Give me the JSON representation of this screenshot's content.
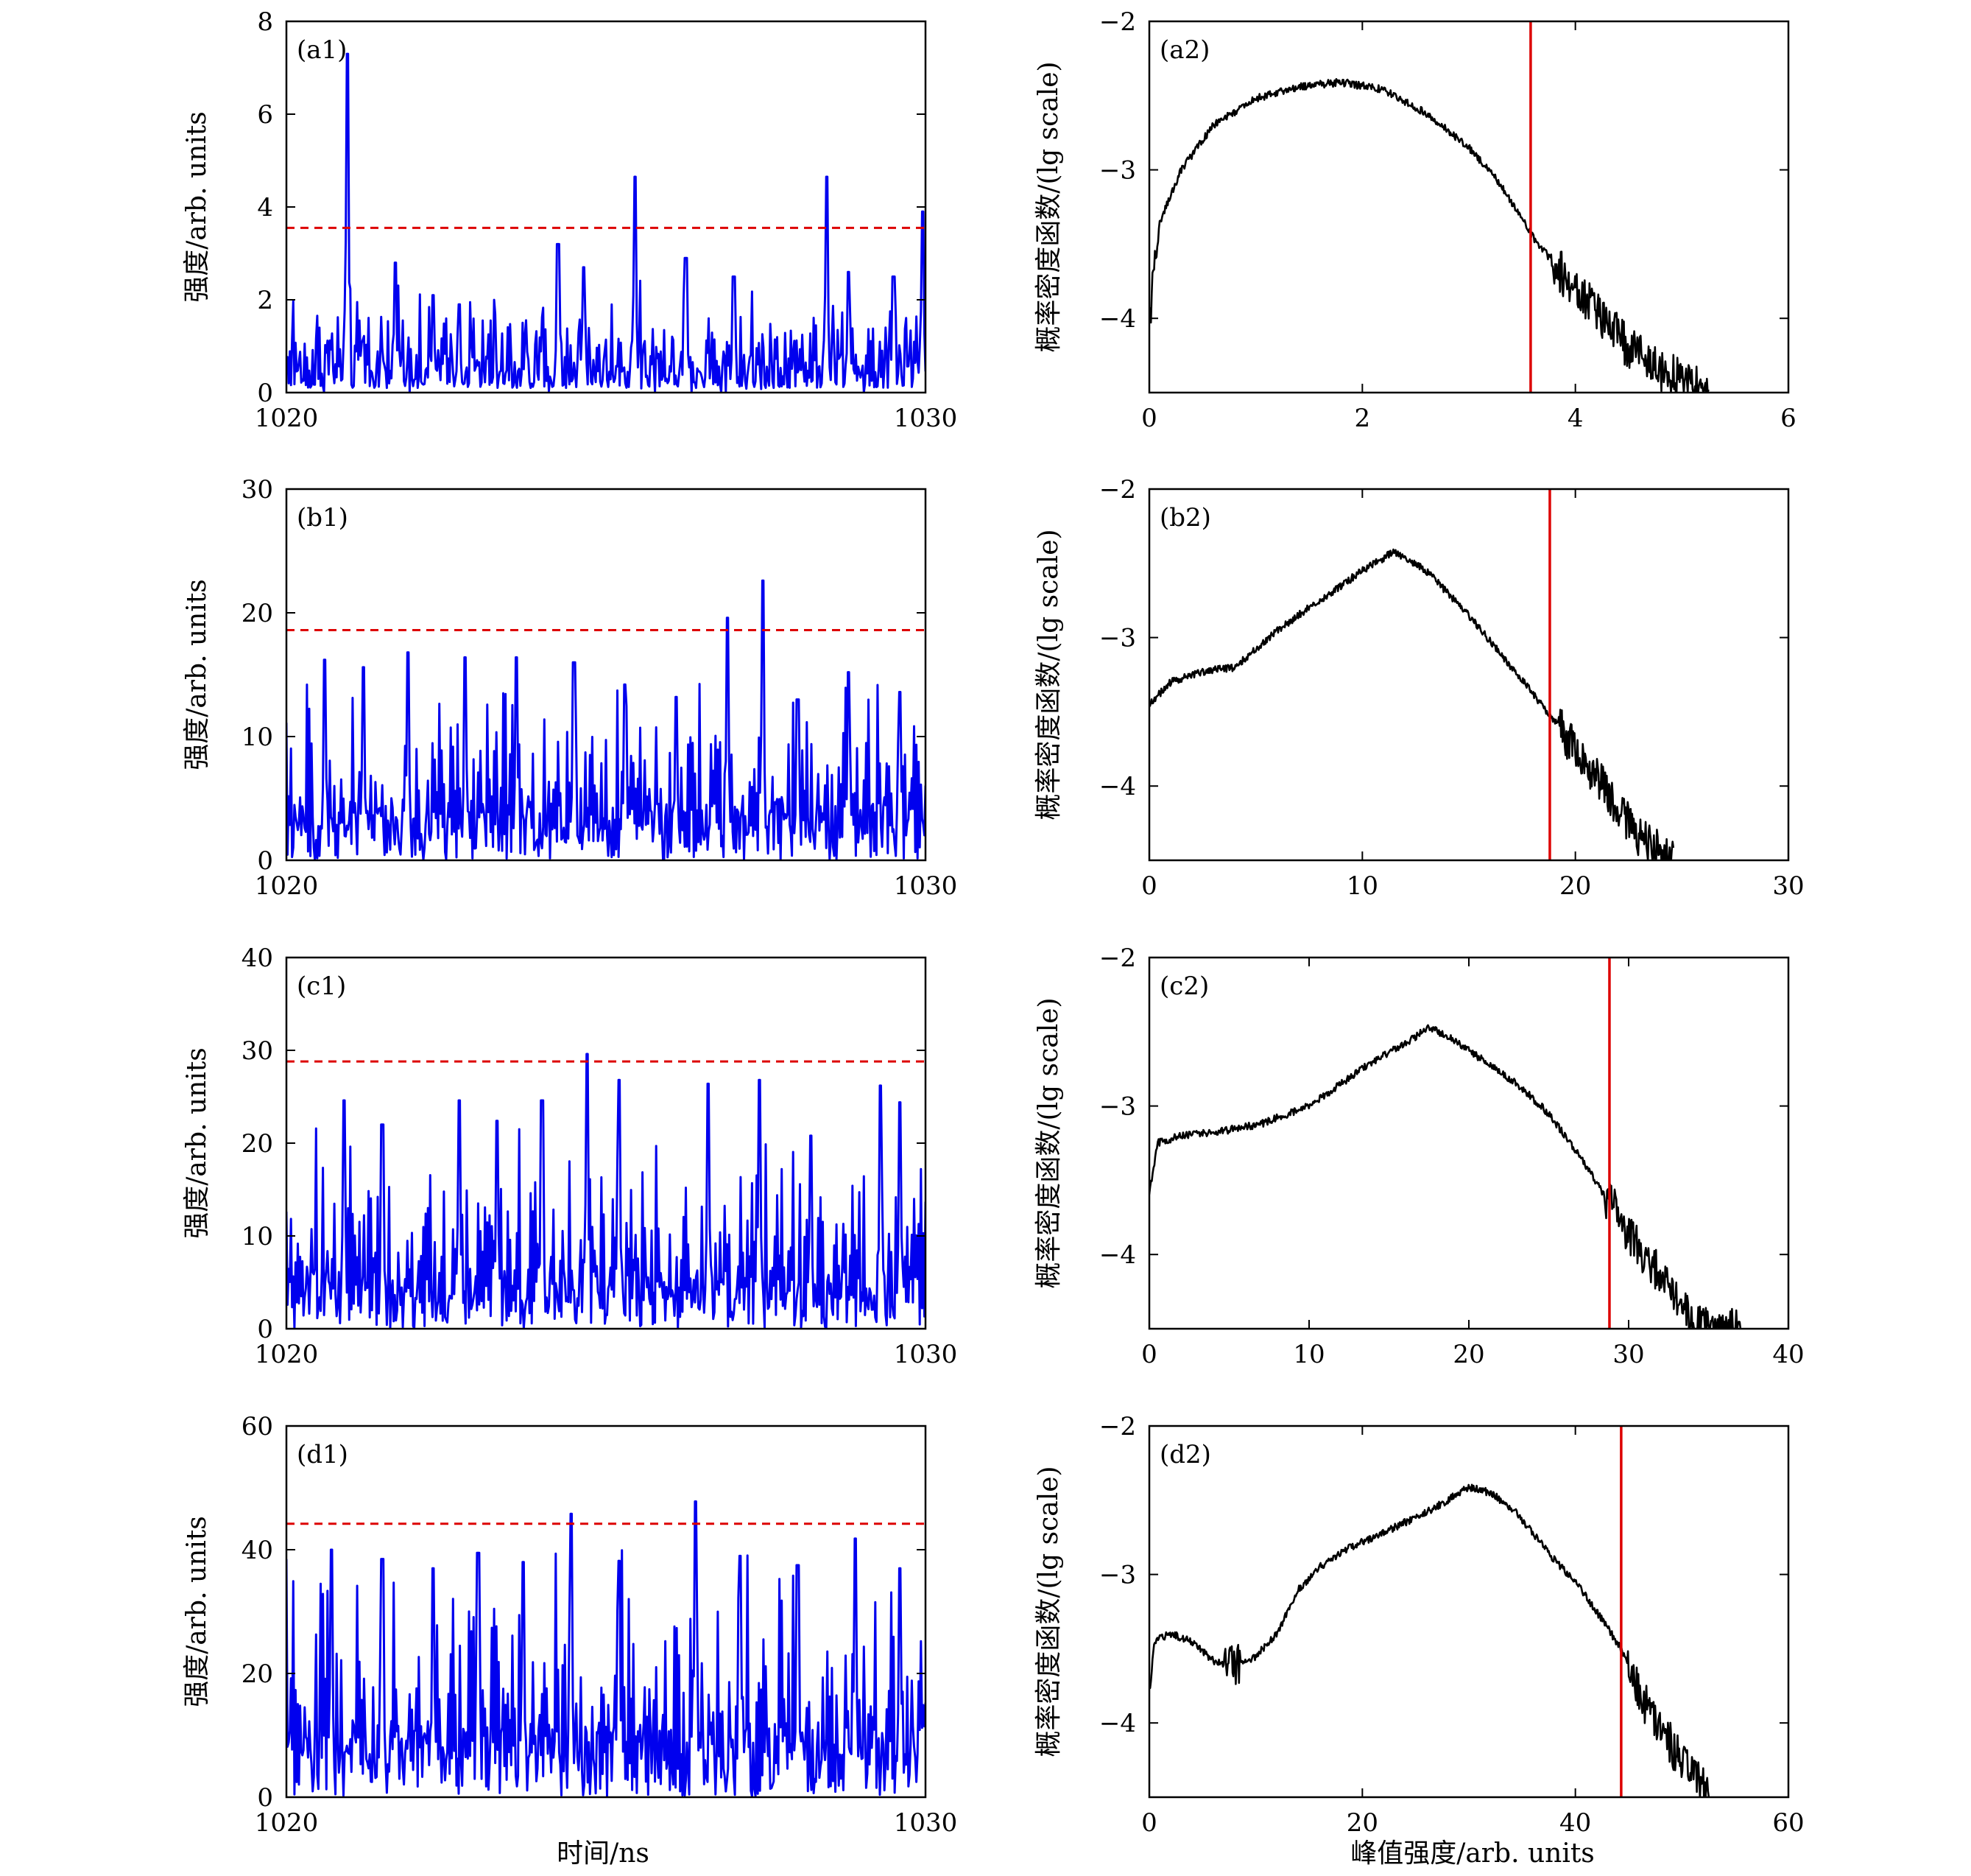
{
  "figure": {
    "xlabel_left": "时间/ns",
    "xlabel_right": "峰值强度/arb. units"
  },
  "chart_data": [
    {
      "id": "a1",
      "type": "line",
      "panel_label": "(a1)",
      "xlabel": "",
      "ylabel": "强度/arb. units",
      "xlim": [
        1020,
        1030
      ],
      "ylim": [
        0,
        8
      ],
      "xticks": [
        1020,
        1030
      ],
      "yticks": [
        0,
        2,
        4,
        6,
        8
      ],
      "line_color": "#0000ee",
      "threshold": {
        "value": 3.55,
        "style": "dashed",
        "color": "#dd0000"
      },
      "peaks": [
        {
          "x": 1020.95,
          "y": 7.3
        },
        {
          "x": 1021.7,
          "y": 2.8
        },
        {
          "x": 1022.3,
          "y": 2.1
        },
        {
          "x": 1022.7,
          "y": 1.9
        },
        {
          "x": 1024.25,
          "y": 3.2
        },
        {
          "x": 1024.65,
          "y": 2.7
        },
        {
          "x": 1025.45,
          "y": 4.65
        },
        {
          "x": 1026.25,
          "y": 2.9
        },
        {
          "x": 1027.0,
          "y": 2.5
        },
        {
          "x": 1028.45,
          "y": 4.65
        },
        {
          "x": 1028.8,
          "y": 2.6
        },
        {
          "x": 1029.5,
          "y": 2.5
        },
        {
          "x": 1029.95,
          "y": 3.9
        }
      ]
    },
    {
      "id": "a2",
      "type": "line",
      "panel_label": "(a2)",
      "xlabel": "",
      "ylabel": "概率密度函数/(lg scale)",
      "xlim": [
        0,
        6
      ],
      "ylim": [
        -4.5,
        -2
      ],
      "xticks": [
        0,
        2,
        4,
        6
      ],
      "yticks": [
        -2,
        -3,
        -4
      ],
      "line_color": "#000000",
      "threshold": {
        "value": 3.58,
        "style": "solid",
        "color": "#dd0000"
      },
      "x": [
        0.0,
        0.1,
        0.3,
        0.6,
        1.0,
        1.4,
        1.8,
        2.2,
        2.6,
        3.0,
        3.3,
        3.6,
        3.9,
        4.2,
        4.5,
        4.8,
        5.1,
        5.25
      ],
      "y": [
        -4.0,
        -3.35,
        -3.0,
        -2.7,
        -2.52,
        -2.44,
        -2.41,
        -2.46,
        -2.62,
        -2.85,
        -3.1,
        -3.45,
        -3.72,
        -3.95,
        -4.2,
        -4.35,
        -4.45,
        -4.5
      ]
    },
    {
      "id": "b1",
      "type": "line",
      "panel_label": "(b1)",
      "xlabel": "",
      "ylabel": "强度/arb. units",
      "xlim": [
        1020,
        1030
      ],
      "ylim": [
        0,
        30
      ],
      "xticks": [
        1020,
        1030
      ],
      "yticks": [
        0,
        10,
        20,
        30
      ],
      "line_color": "#0000ee",
      "threshold": {
        "value": 18.6,
        "style": "dashed",
        "color": "#dd0000"
      },
      "peaks": [
        {
          "x": 1020.6,
          "y": 16.2
        },
        {
          "x": 1021.2,
          "y": 15.6
        },
        {
          "x": 1021.9,
          "y": 16.8
        },
        {
          "x": 1022.8,
          "y": 16.4
        },
        {
          "x": 1023.6,
          "y": 16.4
        },
        {
          "x": 1024.5,
          "y": 16.0
        },
        {
          "x": 1025.3,
          "y": 14.2
        },
        {
          "x": 1026.1,
          "y": 13.2
        },
        {
          "x": 1026.9,
          "y": 19.6
        },
        {
          "x": 1027.45,
          "y": 22.6
        },
        {
          "x": 1028.0,
          "y": 13.0
        },
        {
          "x": 1028.8,
          "y": 15.2
        },
        {
          "x": 1029.6,
          "y": 13.6
        }
      ]
    },
    {
      "id": "b2",
      "type": "line",
      "panel_label": "(b2)",
      "xlabel": "",
      "ylabel": "概率密度函数/(lg scale)",
      "xlim": [
        0,
        30
      ],
      "ylim": [
        -4.5,
        -2
      ],
      "xticks": [
        0,
        10,
        20,
        30
      ],
      "yticks": [
        -2,
        -3,
        -4
      ],
      "line_color": "#000000",
      "threshold": {
        "value": 18.8,
        "style": "solid",
        "color": "#dd0000"
      },
      "x": [
        0,
        1,
        2,
        3,
        4,
        6,
        8,
        10,
        11.5,
        13,
        15,
        17,
        18.8,
        20,
        21,
        22,
        23,
        24,
        24.6
      ],
      "y": [
        -3.45,
        -3.3,
        -3.25,
        -3.22,
        -3.2,
        -2.95,
        -2.75,
        -2.55,
        -2.42,
        -2.55,
        -2.85,
        -3.2,
        -3.52,
        -3.75,
        -3.95,
        -4.15,
        -4.35,
        -4.45,
        -4.5
      ]
    },
    {
      "id": "c1",
      "type": "line",
      "panel_label": "(c1)",
      "xlabel": "",
      "ylabel": "强度/arb. units",
      "xlim": [
        1020,
        1030
      ],
      "ylim": [
        0,
        40
      ],
      "xticks": [
        1020,
        1030
      ],
      "yticks": [
        0,
        10,
        20,
        30,
        40
      ],
      "line_color": "#0000ee",
      "threshold": {
        "value": 28.8,
        "style": "dashed",
        "color": "#dd0000"
      },
      "peaks": [
        {
          "x": 1020.9,
          "y": 24.6
        },
        {
          "x": 1021.5,
          "y": 22.0
        },
        {
          "x": 1022.7,
          "y": 24.6
        },
        {
          "x": 1023.3,
          "y": 22.4
        },
        {
          "x": 1024.0,
          "y": 24.6
        },
        {
          "x": 1024.7,
          "y": 29.6
        },
        {
          "x": 1025.2,
          "y": 26.8
        },
        {
          "x": 1026.6,
          "y": 26.4
        },
        {
          "x": 1027.4,
          "y": 26.8
        },
        {
          "x": 1028.2,
          "y": 20.8
        },
        {
          "x": 1029.3,
          "y": 26.2
        },
        {
          "x": 1029.6,
          "y": 24.4
        }
      ]
    },
    {
      "id": "c2",
      "type": "line",
      "panel_label": "(c2)",
      "xlabel": "",
      "ylabel": "概率密度函数/(lg scale)",
      "xlim": [
        0,
        40
      ],
      "ylim": [
        -4.5,
        -2
      ],
      "xticks": [
        0,
        10,
        20,
        30,
        40
      ],
      "yticks": [
        -2,
        -3,
        -4
      ],
      "line_color": "#000000",
      "threshold": {
        "value": 28.8,
        "style": "solid",
        "color": "#dd0000"
      },
      "x": [
        0,
        0.5,
        2,
        4,
        7,
        10,
        12,
        14,
        16,
        17.5,
        19,
        21,
        23,
        25,
        27,
        28.8,
        30,
        31,
        32,
        33,
        34,
        35,
        37
      ],
      "y": [
        -3.6,
        -3.25,
        -3.2,
        -3.18,
        -3.12,
        -3.0,
        -2.85,
        -2.7,
        -2.58,
        -2.47,
        -2.55,
        -2.7,
        -2.85,
        -3.05,
        -3.35,
        -3.65,
        -3.85,
        -4.0,
        -4.15,
        -4.3,
        -4.45,
        -4.5,
        -4.5
      ]
    },
    {
      "id": "d1",
      "type": "line",
      "panel_label": "(d1)",
      "xlabel": "时间/ns",
      "ylabel": "强度/arb. units",
      "xlim": [
        1020,
        1030
      ],
      "ylim": [
        0,
        60
      ],
      "xticks": [
        1020,
        1030
      ],
      "yticks": [
        0,
        20,
        40,
        60
      ],
      "line_color": "#0000ee",
      "threshold": {
        "value": 44.2,
        "style": "dashed",
        "color": "#dd0000"
      },
      "peaks": [
        {
          "x": 1020.7,
          "y": 40.0
        },
        {
          "x": 1021.5,
          "y": 38.5
        },
        {
          "x": 1022.3,
          "y": 37.0
        },
        {
          "x": 1023.0,
          "y": 39.5
        },
        {
          "x": 1023.7,
          "y": 38.0
        },
        {
          "x": 1024.45,
          "y": 45.8
        },
        {
          "x": 1025.2,
          "y": 38.2
        },
        {
          "x": 1026.4,
          "y": 47.8
        },
        {
          "x": 1027.1,
          "y": 39.0
        },
        {
          "x": 1028.0,
          "y": 37.5
        },
        {
          "x": 1028.9,
          "y": 41.8
        },
        {
          "x": 1029.6,
          "y": 37.0
        }
      ]
    },
    {
      "id": "d2",
      "type": "line",
      "panel_label": "(d2)",
      "xlabel": "峰值强度/arb. units",
      "ylabel": "概率密度函数/(lg scale)",
      "xlim": [
        0,
        60
      ],
      "ylim": [
        -4.5,
        -2
      ],
      "xticks": [
        0,
        20,
        40,
        60
      ],
      "yticks": [
        -2,
        -3,
        -4
      ],
      "line_color": "#000000",
      "threshold": {
        "value": 44.3,
        "style": "solid",
        "color": "#dd0000"
      },
      "x": [
        0,
        0.5,
        2,
        4,
        6,
        8,
        10,
        12,
        14,
        16,
        18,
        20,
        22,
        24,
        26,
        28,
        30,
        32,
        34,
        36,
        38,
        40,
        42,
        44.3,
        46,
        48,
        50,
        52,
        52.6
      ],
      "y": [
        -3.8,
        -3.45,
        -3.4,
        -3.45,
        -3.58,
        -3.62,
        -3.55,
        -3.4,
        -3.1,
        -2.95,
        -2.85,
        -2.78,
        -2.72,
        -2.65,
        -2.58,
        -2.5,
        -2.41,
        -2.45,
        -2.55,
        -2.72,
        -2.9,
        -3.05,
        -3.25,
        -3.5,
        -3.8,
        -4.05,
        -4.25,
        -4.45,
        -4.5
      ]
    }
  ]
}
